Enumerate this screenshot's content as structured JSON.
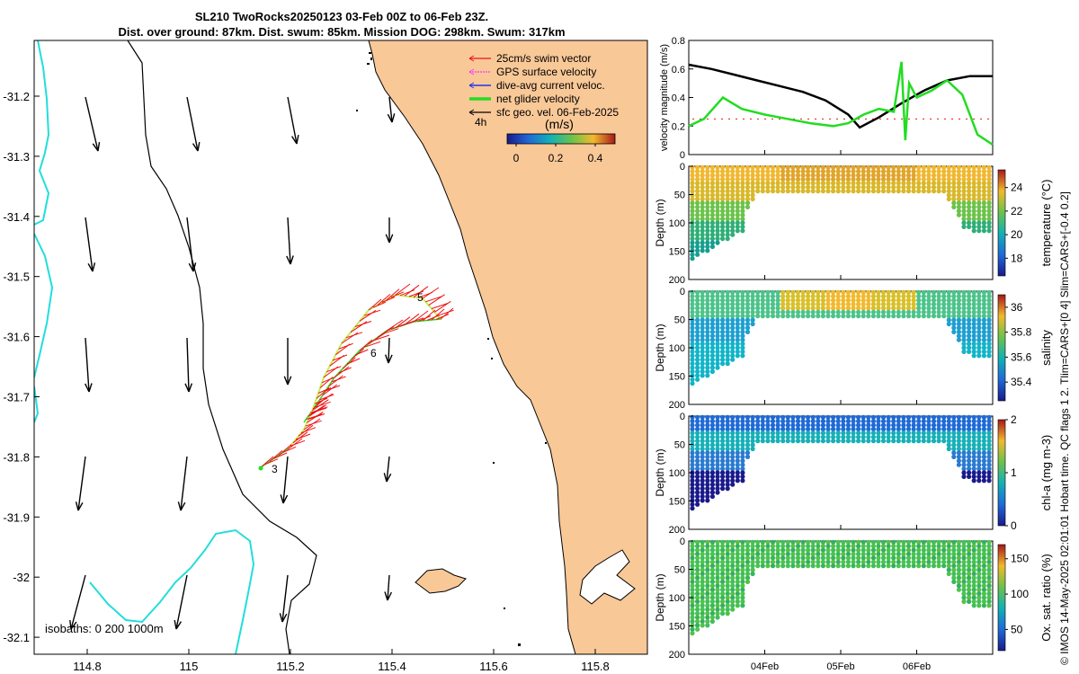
{
  "title": {
    "line1": "SL210 TwoRocks20250123 03-Feb 00Z to 06-Feb 23Z.",
    "line2": "Dist. over ground: 87km. Dist. swum: 85km. Mission DOG: 298km. Swum: 317km"
  },
  "colors": {
    "land": "#f9c897",
    "isobath": "#22dddd",
    "swim_vector": "#ee1111",
    "gps": "#ff33ff",
    "dive_avg": "#2233ee",
    "net_velocity": "#22dd22",
    "geo": "#000000"
  },
  "map": {
    "x_ticks": [
      "114.8",
      "115",
      "115.2",
      "115.4",
      "115.6",
      "115.8"
    ],
    "y_ticks": [
      "-31.2",
      "-31.3",
      "-31.4",
      "-31.5",
      "-31.6",
      "-31.7",
      "-31.8",
      "-31.9",
      "-32",
      "-32.1"
    ],
    "legend": {
      "swim": "25cm/s swim vector",
      "gps": "GPS surface velocity",
      "dive": "dive-avg current veloc.",
      "net": "net glider velocity",
      "geo": "sfc geo. vel. 06-Feb-2025",
      "time_step": "4h"
    },
    "colorbar": {
      "label": "(m/s)",
      "ticks": [
        "0",
        "0.2",
        "0.4"
      ]
    },
    "isobaths_label": "isobaths: 0   200  1000m",
    "waypoints": [
      "5",
      "6",
      "3"
    ]
  },
  "chart_data": [
    {
      "type": "line",
      "title": "",
      "ylabel": "velocity magnitude (m/s)",
      "ylim": [
        0,
        0.8
      ],
      "y_ticks": [
        "0",
        "0.2",
        "0.4",
        "0.6",
        "0.8"
      ],
      "x_ticks": [
        "04Feb",
        "05Feb",
        "06Feb"
      ],
      "series": [
        {
          "name": "dive-avg current magnitude",
          "x": [
            3.0,
            3.3,
            3.6,
            3.9,
            4.2,
            4.5,
            4.8,
            5.1,
            5.25,
            5.5,
            5.8,
            6.1,
            6.4,
            6.7,
            7.0
          ],
          "values": [
            0.63,
            0.6,
            0.56,
            0.52,
            0.48,
            0.44,
            0.38,
            0.28,
            0.19,
            0.26,
            0.36,
            0.45,
            0.52,
            0.55,
            0.55
          ]
        },
        {
          "name": "net glider velocity",
          "x": [
            3.0,
            3.2,
            3.45,
            3.7,
            4.0,
            4.3,
            4.6,
            4.9,
            5.1,
            5.3,
            5.5,
            5.7,
            5.8,
            5.85,
            5.9,
            6.0,
            6.2,
            6.4,
            6.6,
            6.8,
            7.0
          ],
          "values": [
            0.2,
            0.25,
            0.4,
            0.32,
            0.28,
            0.25,
            0.22,
            0.2,
            0.22,
            0.28,
            0.32,
            0.3,
            0.65,
            0.1,
            0.5,
            0.4,
            0.45,
            0.52,
            0.42,
            0.14,
            0.07
          ]
        }
      ]
    },
    {
      "type": "heatmap",
      "ylabel": "Depth (m)",
      "colorbar_label": "temperature (°C)",
      "y_ticks": [
        "0",
        "50",
        "100",
        "150",
        "200"
      ],
      "colorbar_ticks": [
        "18",
        "20",
        "22",
        "24"
      ],
      "colorbar_range": [
        16.5,
        25.5
      ],
      "colormap": "parula"
    },
    {
      "type": "heatmap",
      "ylabel": "Depth (m)",
      "colorbar_label": "salinity",
      "y_ticks": [
        "0",
        "50",
        "100",
        "150",
        "200"
      ],
      "colorbar_ticks": [
        "35.4",
        "35.6",
        "35.8",
        "36"
      ],
      "colorbar_range": [
        35.25,
        36.1
      ],
      "colormap": "parula"
    },
    {
      "type": "heatmap",
      "ylabel": "Depth (m)",
      "colorbar_label": "chl-a (mg m-3)",
      "y_ticks": [
        "0",
        "50",
        "100",
        "150",
        "200"
      ],
      "colorbar_ticks": [
        "0",
        "1",
        "2"
      ],
      "colorbar_range": [
        0,
        2
      ],
      "colormap": "parula"
    },
    {
      "type": "heatmap",
      "ylabel": "Depth (m)",
      "colorbar_label": "Ox. sat. ratio (%)",
      "y_ticks": [
        "0",
        "50",
        "100",
        "150",
        "200"
      ],
      "colorbar_ticks": [
        "50",
        "100",
        "150"
      ],
      "colorbar_range": [
        20,
        170
      ],
      "colormap": "parula",
      "x_ticks": [
        "04Feb",
        "05Feb",
        "06Feb"
      ]
    }
  ],
  "side_note": "© IMOS 14-May-2025 02:01:01 Hobart time. QC flags 1  2. Tlim=CARS+[0 4] Slim=CARS+[-0.4 0.2]"
}
